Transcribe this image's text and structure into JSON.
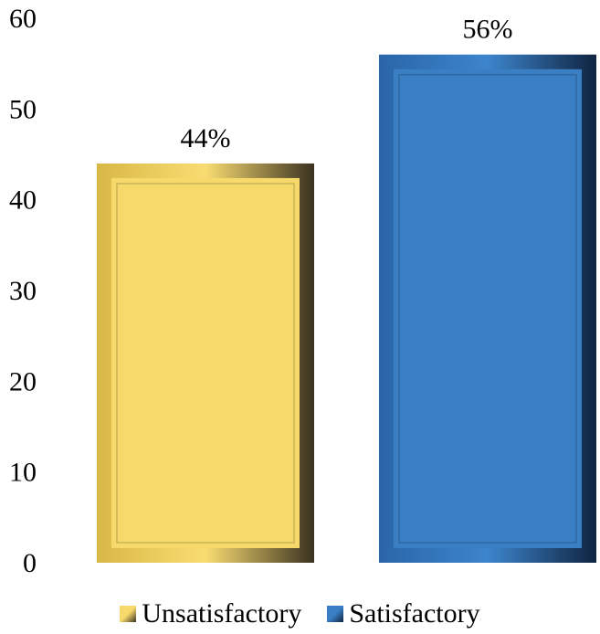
{
  "chart_data": {
    "type": "bar",
    "categories": [
      "Unsatisfactory",
      "Satisfactory"
    ],
    "values": [
      44,
      56
    ],
    "data_labels": [
      "44%",
      "56%"
    ],
    "colors": [
      "#f7d96b",
      "#3a7ec4"
    ],
    "ylim": [
      0,
      60
    ],
    "yticks": [
      "0",
      "10",
      "20",
      "30",
      "40",
      "50",
      "60"
    ],
    "grid": false,
    "legend": {
      "placement": "bottom",
      "entries": [
        "Unsatisfactory",
        "Satisfactory"
      ]
    }
  }
}
